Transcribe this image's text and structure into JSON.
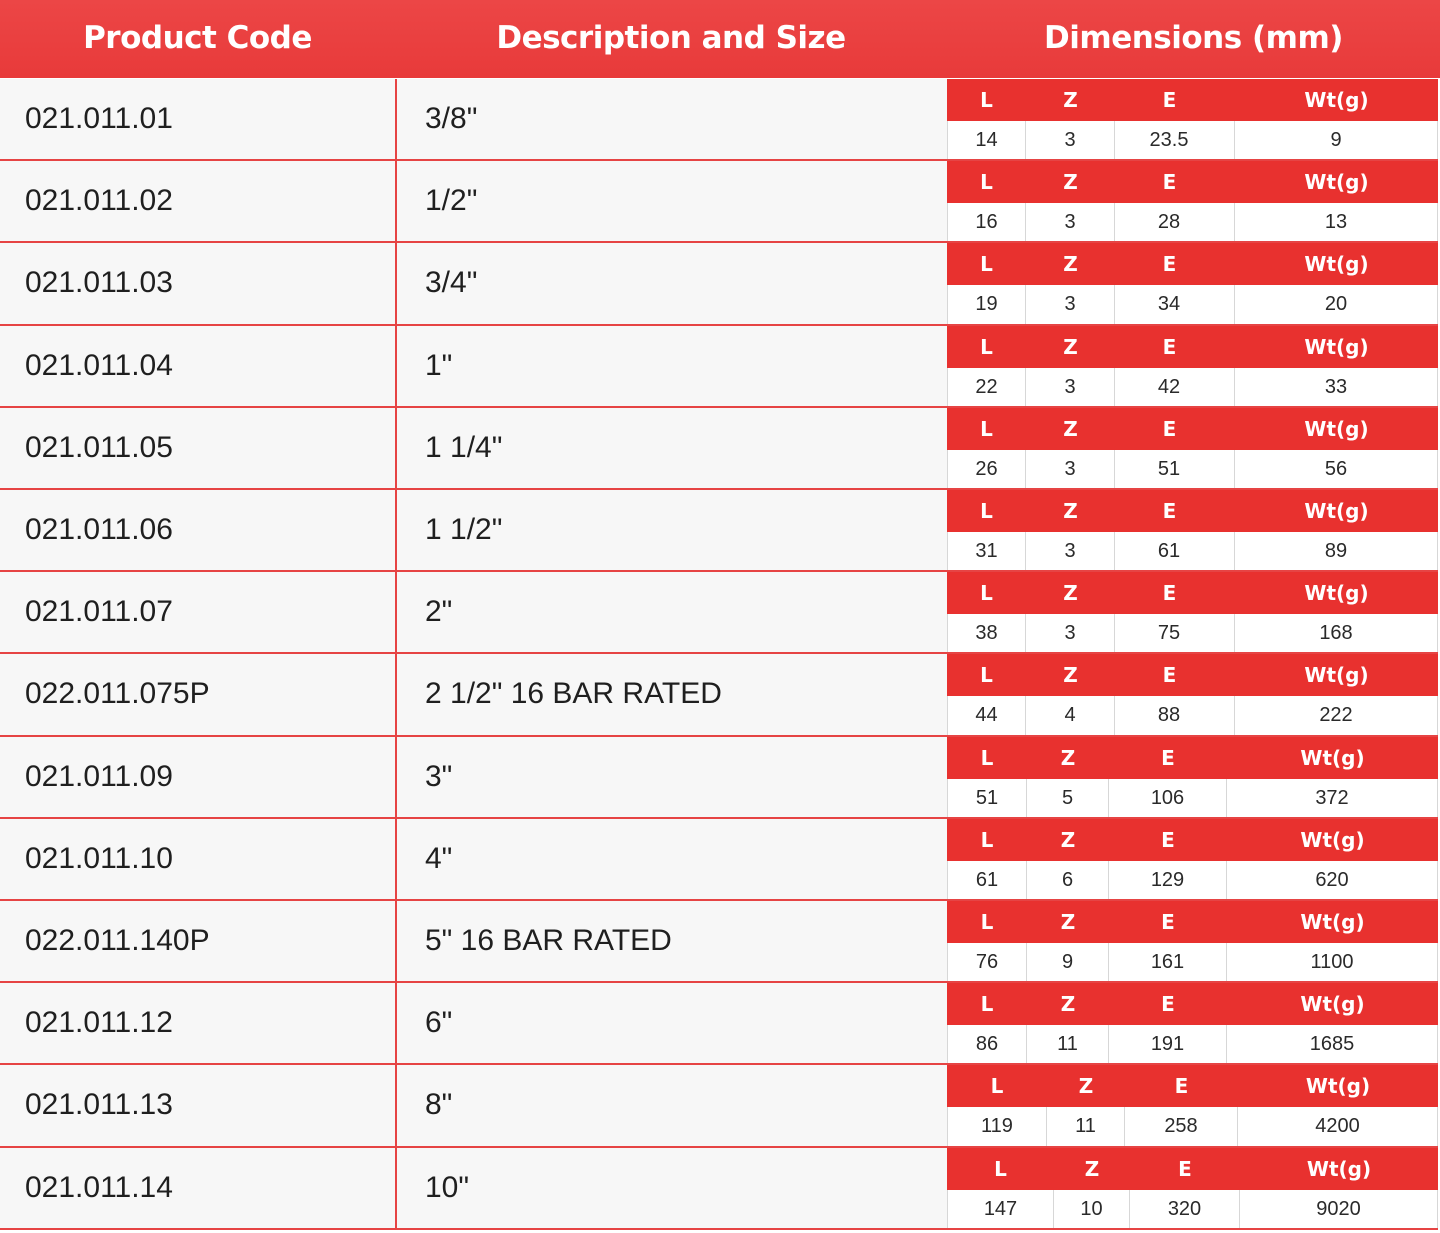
{
  "header": {
    "product_code": "Product Code",
    "description": "Description and Size",
    "dimensions": "Dimensions (mm)"
  },
  "dim_labels": {
    "l": "L",
    "z": "Z",
    "e": "E",
    "wt": "Wt(g)"
  },
  "colors": {
    "accent": "#e8312f",
    "header": "#ec4646",
    "row_bg": "#f7f7f7"
  },
  "rows": [
    {
      "code": "021.011.01",
      "desc": "3/8\"",
      "l": "14",
      "z": "3",
      "e": "23.5",
      "wt": "9"
    },
    {
      "code": "021.011.02",
      "desc": "1/2\"",
      "l": "16",
      "z": "3",
      "e": "28",
      "wt": "13"
    },
    {
      "code": "021.011.03",
      "desc": "3/4\"",
      "l": "19",
      "z": "3",
      "e": "34",
      "wt": "20"
    },
    {
      "code": "021.011.04",
      "desc": "1\"",
      "l": "22",
      "z": "3",
      "e": "42",
      "wt": "33"
    },
    {
      "code": "021.011.05",
      "desc": "1 1/4\"",
      "l": "26",
      "z": "3",
      "e": "51",
      "wt": "56"
    },
    {
      "code": "021.011.06",
      "desc": "1 1/2\"",
      "l": "31",
      "z": "3",
      "e": "61",
      "wt": "89"
    },
    {
      "code": "021.011.07",
      "desc": "2\"",
      "l": "38",
      "z": "3",
      "e": "75",
      "wt": "168"
    },
    {
      "code": "022.011.075P",
      "desc": "2 1/2\" 16 BAR RATED",
      "l": "44",
      "z": "4",
      "e": "88",
      "wt": "222"
    },
    {
      "code": "021.011.09",
      "desc": "3\"",
      "l": "51",
      "z": "5",
      "e": "106",
      "wt": "372"
    },
    {
      "code": "021.011.10",
      "desc": "4\"",
      "l": "61",
      "z": "6",
      "e": "129",
      "wt": "620"
    },
    {
      "code": "022.011.140P",
      "desc": "5\" 16 BAR RATED",
      "l": "76",
      "z": "9",
      "e": "161",
      "wt": "1100"
    },
    {
      "code": "021.011.12",
      "desc": "6\"",
      "l": "86",
      "z": "11",
      "e": "191",
      "wt": "1685"
    },
    {
      "code": "021.011.13",
      "desc": "8\"",
      "l": "119",
      "z": "11",
      "e": "258",
      "wt": "4200"
    },
    {
      "code": "021.011.14",
      "desc": "10\"",
      "l": "147",
      "z": "10",
      "e": "320",
      "wt": "9020"
    }
  ]
}
